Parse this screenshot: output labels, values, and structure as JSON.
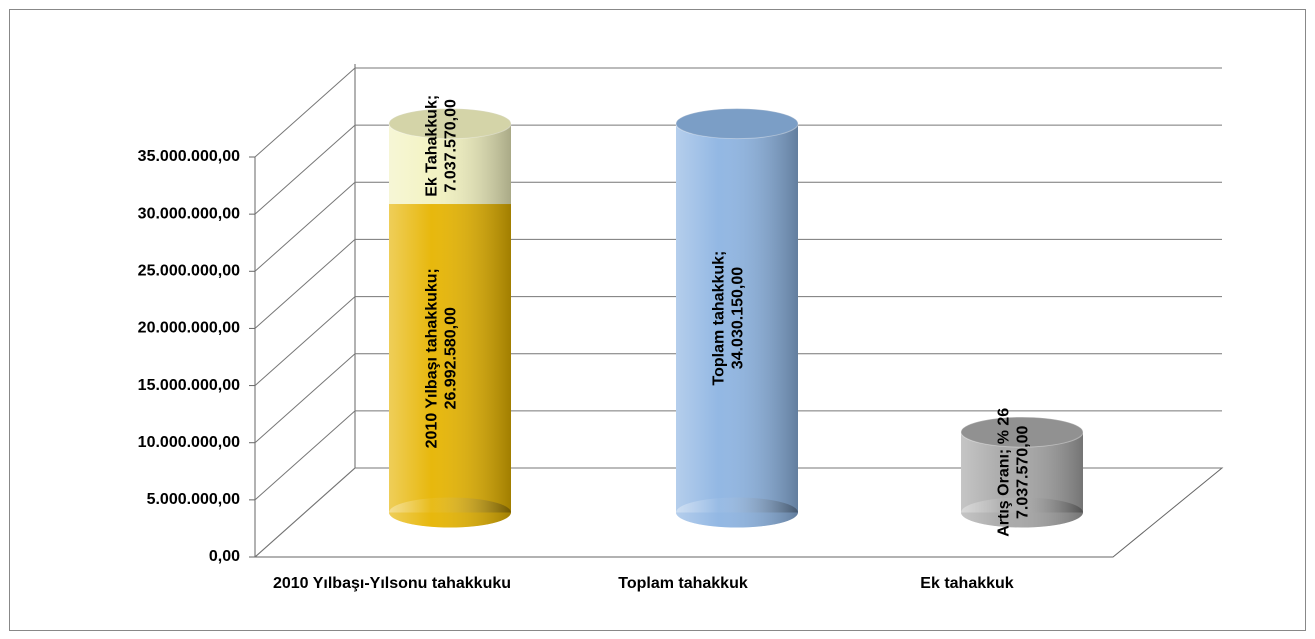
{
  "chart_data": {
    "type": "cylinder",
    "categories": [
      "2010 Yılbaşı-Yılsonu tahakkuku",
      "Toplam tahakkuk",
      "Ek tahakkuk"
    ],
    "series": [
      {
        "colors": [
          "#e6b400",
          "#8db4e2",
          "#a6a6a6"
        ],
        "values": [
          26992580,
          34030150,
          7037570
        ],
        "value_labels": [
          [
            "2010 Yılbaşı tahakkuku;",
            "26.992.580,00"
          ],
          [
            "Toplam tahakkuk;",
            "34.030.150,00"
          ],
          [
            "Artış Oranı; % 26",
            "7.037.570,00"
          ]
        ]
      },
      {
        "colors": [
          "#f2f2c0",
          null,
          null
        ],
        "values": [
          7037570,
          null,
          null
        ],
        "value_labels": [
          [
            "Ek Tahakkuk;",
            "7.037.570,00"
          ],
          null,
          null
        ]
      }
    ],
    "ylim": [
      0,
      35000000
    ],
    "yticks": [
      {
        "value": 0,
        "label": "0,00"
      },
      {
        "value": 5000000,
        "label": "5.000.000,00"
      },
      {
        "value": 10000000,
        "label": "10.000.000,00"
      },
      {
        "value": 15000000,
        "label": "15.000.000,00"
      },
      {
        "value": 20000000,
        "label": "20.000.000,00"
      },
      {
        "value": 25000000,
        "label": "25.000.000,00"
      },
      {
        "value": 30000000,
        "label": "30.000.000,00"
      },
      {
        "value": 35000000,
        "label": "35.000.000,00"
      }
    ],
    "grid": true
  }
}
